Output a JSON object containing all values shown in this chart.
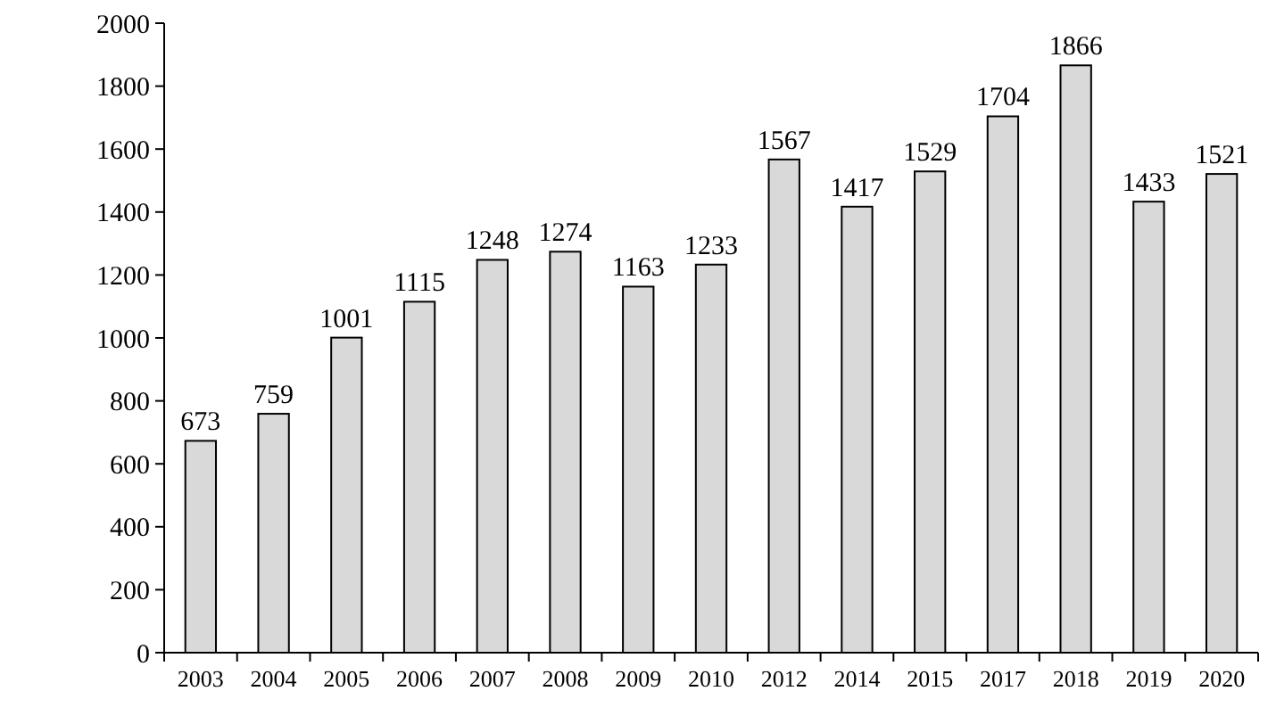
{
  "chart_data": {
    "type": "bar",
    "categories": [
      "2003",
      "2004",
      "2005",
      "2006",
      "2007",
      "2008",
      "2009",
      "2010",
      "2012",
      "2014",
      "2015",
      "2017",
      "2018",
      "2019",
      "2020"
    ],
    "values": [
      673,
      759,
      1001,
      1115,
      1248,
      1274,
      1163,
      1233,
      1567,
      1417,
      1529,
      1704,
      1866,
      1433,
      1521
    ],
    "color": "#d9d9d9",
    "ylim": [
      0,
      2000
    ],
    "yticks": [
      0,
      200,
      400,
      600,
      800,
      1000,
      1200,
      1400,
      1600,
      1800,
      2000
    ],
    "data_labels": true,
    "grid": false
  }
}
